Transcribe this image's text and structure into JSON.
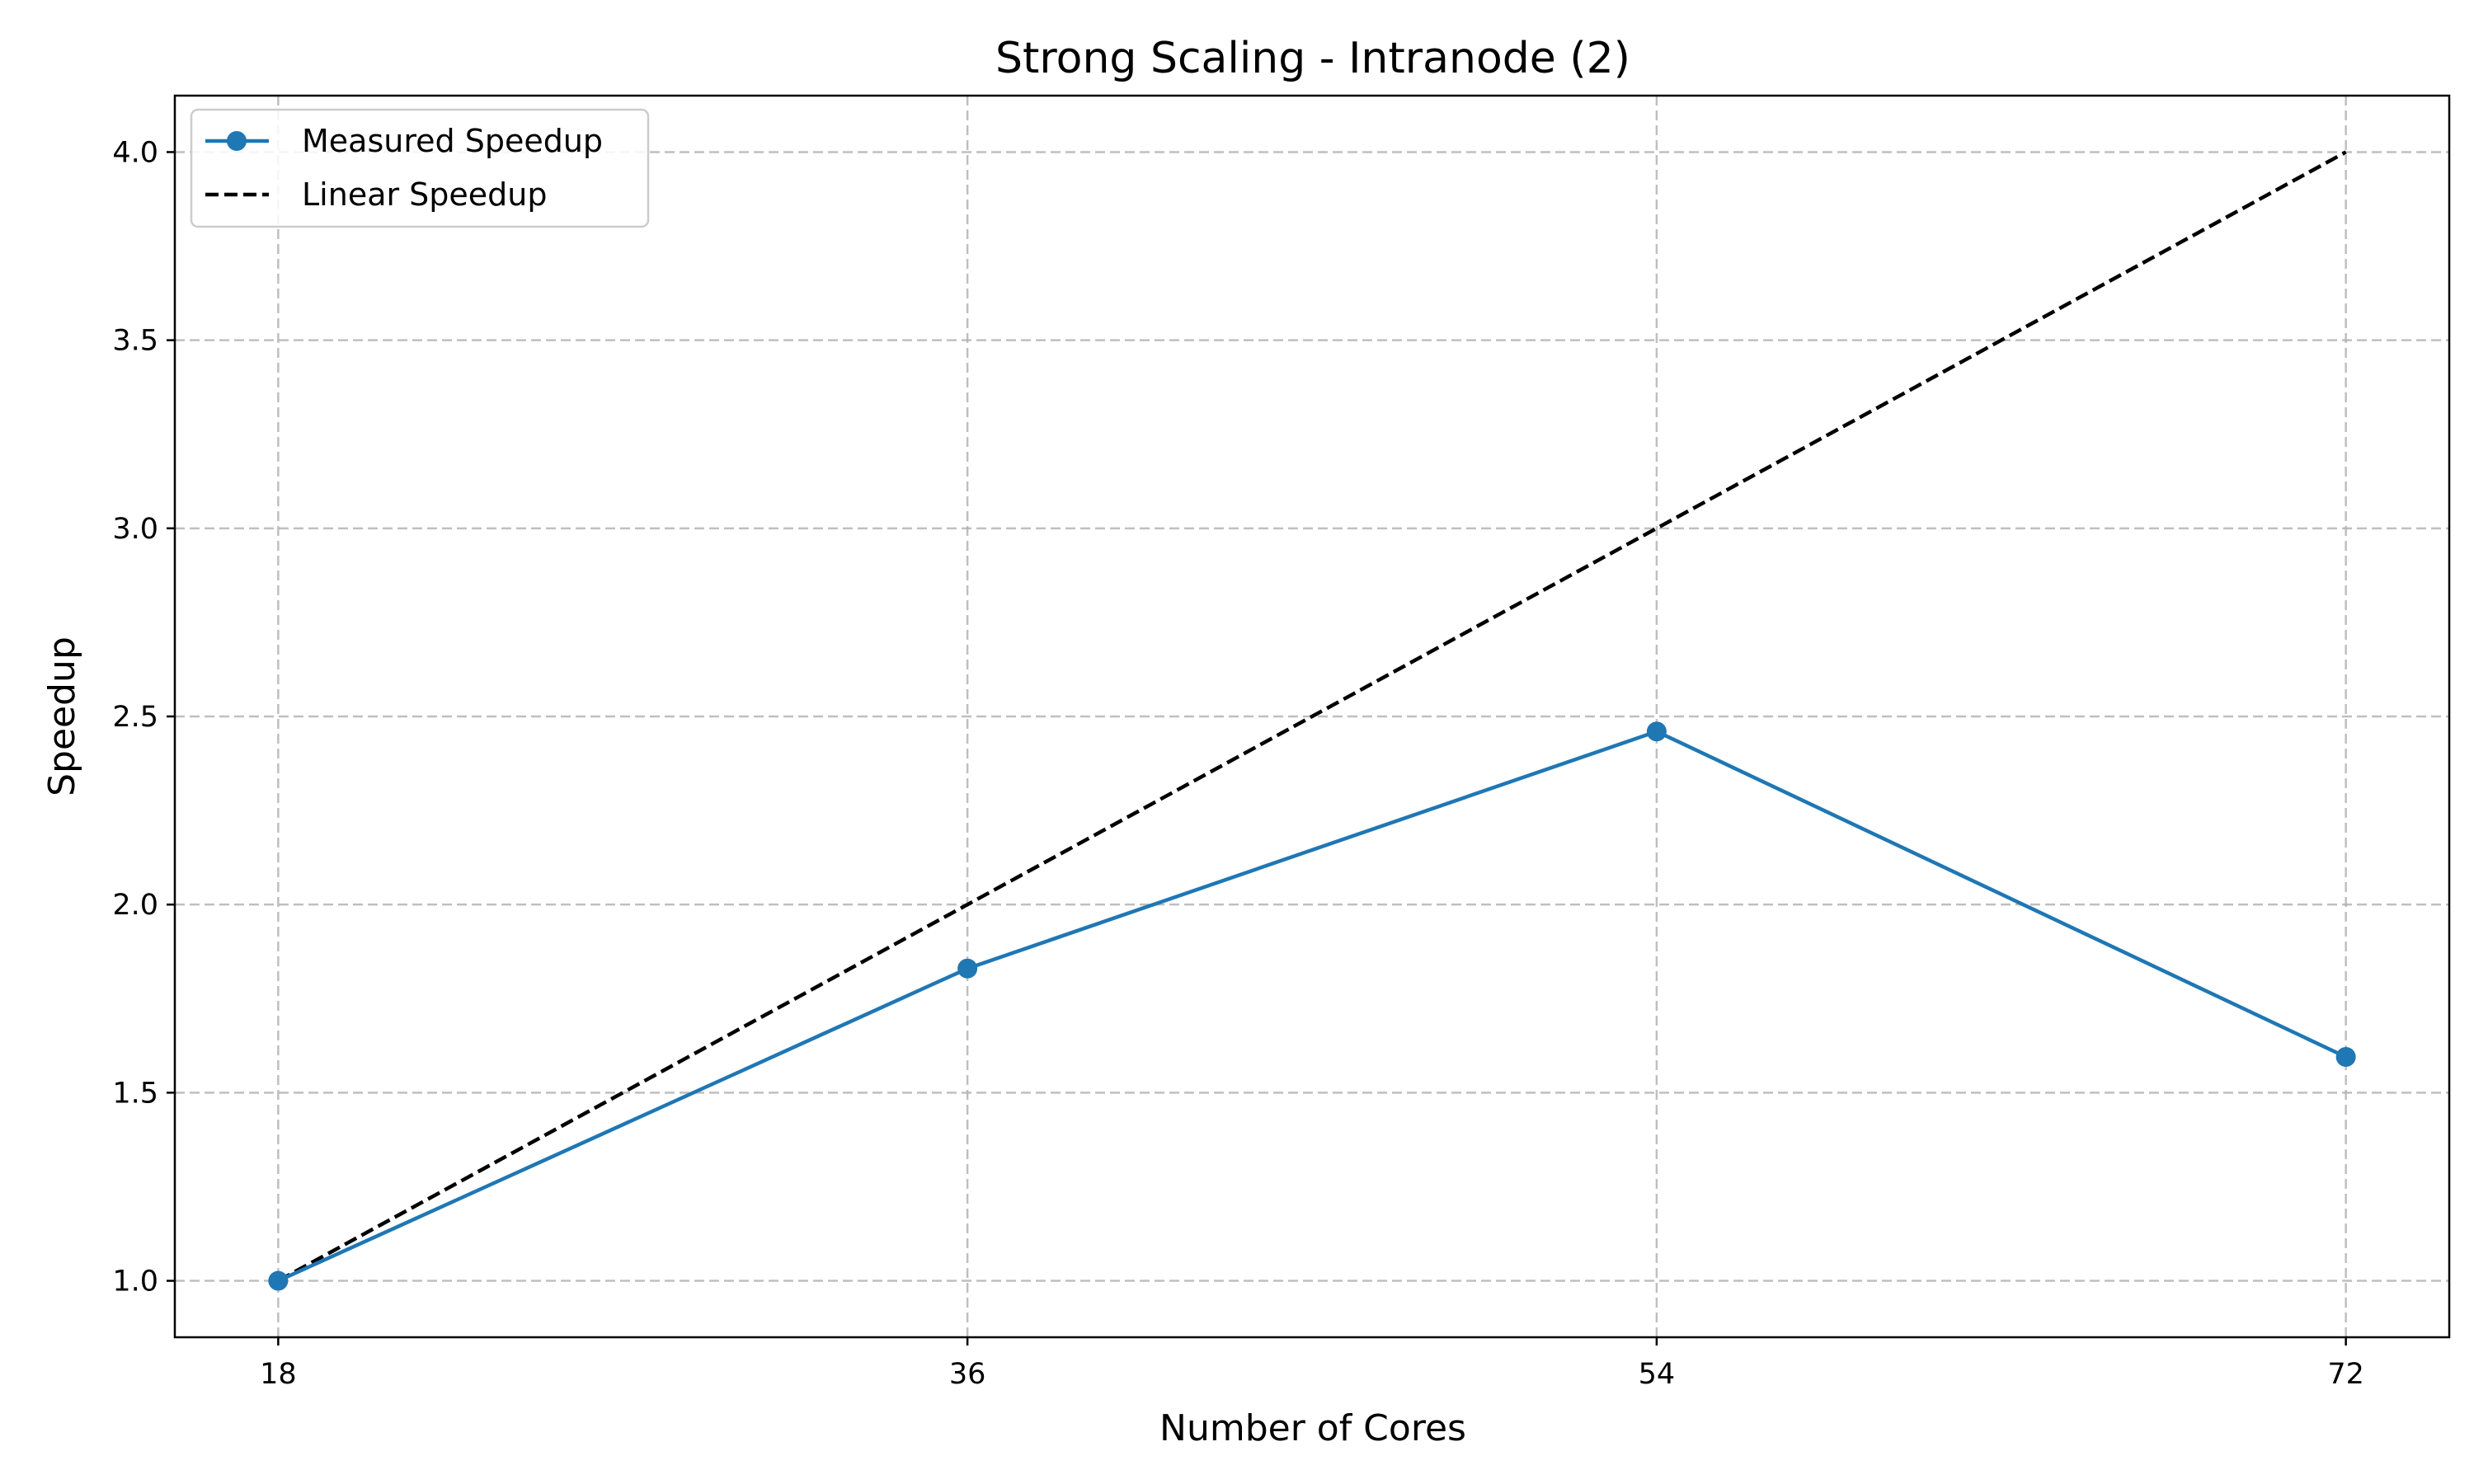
{
  "chart_data": {
    "type": "line",
    "title": "Strong Scaling - Intranode (2)",
    "xlabel": "Number of Cores",
    "ylabel": "Speedup",
    "x": [
      18,
      36,
      54,
      72
    ],
    "xlim": [
      15.3,
      74.7
    ],
    "ylim": [
      0.85,
      4.15
    ],
    "xticks": [
      "18",
      "36",
      "54",
      "72"
    ],
    "yticks": [
      "1.0",
      "1.5",
      "2.0",
      "2.5",
      "3.0",
      "3.5",
      "4.0"
    ],
    "grid": true,
    "legend_position": "top-left",
    "series": [
      {
        "name": "Measured Speedup",
        "values": [
          1.0,
          1.83,
          2.46,
          1.595
        ],
        "color": "#1f77b4",
        "style": "solid",
        "marker": "circle"
      },
      {
        "name": "Linear Speedup",
        "values": [
          1.0,
          2.0,
          3.0,
          4.0
        ],
        "color": "#000000",
        "style": "dashed",
        "marker": "none"
      }
    ]
  }
}
